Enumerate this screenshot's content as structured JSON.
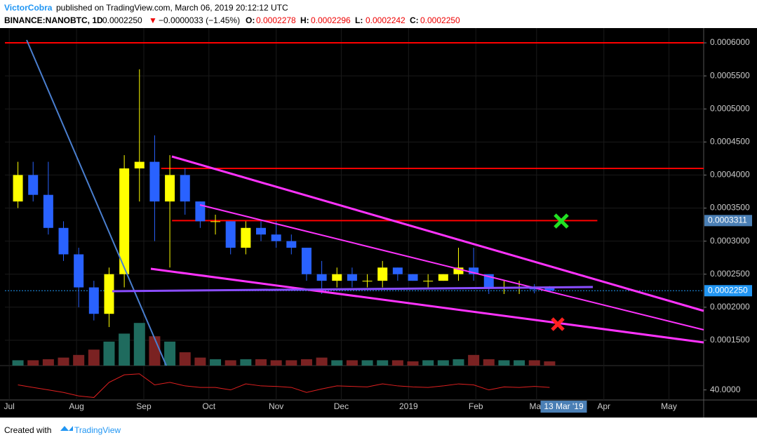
{
  "header": {
    "author": "VictorCobra",
    "published": "published on TradingView.com, March 06, 2019 20:12:12 UTC",
    "symbol": "BINANCE:NANOBTC, 1D",
    "price": "0.0002250",
    "change_arrow": "▼",
    "change": "−0.0000033 (−1.45%)",
    "ohlc": [
      {
        "key": "O:",
        "value": "0.0002278"
      },
      {
        "key": "H:",
        "value": "0.0002296"
      },
      {
        "key": "L:",
        "value": "0.0002242"
      },
      {
        "key": "C:",
        "value": "0.0002250"
      }
    ]
  },
  "chart_data": {
    "type": "candlestick",
    "x": [
      1,
      8,
      15,
      22,
      29,
      36,
      43,
      50,
      57,
      64,
      71,
      78,
      85,
      92,
      99,
      106,
      113,
      120,
      127,
      134,
      141,
      148,
      155,
      162,
      169,
      176,
      183,
      190,
      197,
      204,
      211,
      218,
      225,
      232,
      239,
      246
    ],
    "open": [
      0.00036,
      0.0004,
      0.00037,
      0.00032,
      0.00028,
      0.00023,
      0.00019,
      0.00025,
      0.00041,
      0.00042,
      0.00036,
      0.0004,
      0.00036,
      0.00033,
      0.00033,
      0.00029,
      0.00032,
      0.00031,
      0.0003,
      0.00029,
      0.00025,
      0.00024,
      0.00025,
      0.00024,
      0.00024,
      0.00026,
      0.00025,
      0.00024,
      0.00024,
      0.00025,
      0.00026,
      0.00025,
      0.00023,
      0.00023,
      0.00023,
      0.00023
    ],
    "high": [
      0.00042,
      0.00042,
      0.00042,
      0.00033,
      0.00029,
      0.00024,
      0.00026,
      0.00043,
      0.00056,
      0.00046,
      0.00043,
      0.00041,
      0.00036,
      0.00034,
      0.00033,
      0.00033,
      0.00033,
      0.00033,
      0.00031,
      0.00029,
      0.00027,
      0.00026,
      0.00026,
      0.00025,
      0.00027,
      0.00026,
      0.00025,
      0.00025,
      0.00025,
      0.00029,
      0.00029,
      0.00025,
      0.00024,
      0.00024,
      0.000235,
      0.000232
    ],
    "low": [
      0.00035,
      0.00036,
      0.00031,
      0.00027,
      0.0002,
      0.00018,
      0.00017,
      0.00023,
      0.00036,
      0.0003,
      0.00026,
      0.00034,
      0.00032,
      0.00031,
      0.00028,
      0.00028,
      0.0003,
      0.00029,
      0.00028,
      0.00024,
      0.00022,
      0.00023,
      0.00023,
      0.00023,
      0.00023,
      0.00024,
      0.00024,
      0.00023,
      0.00024,
      0.00024,
      0.00024,
      0.00022,
      0.00022,
      0.00022,
      0.000221,
      0.000224
    ],
    "close": [
      0.0004,
      0.00037,
      0.00032,
      0.00028,
      0.00023,
      0.00019,
      0.00025,
      0.00041,
      0.00042,
      0.00036,
      0.0004,
      0.00036,
      0.00033,
      0.00033,
      0.00029,
      0.00032,
      0.00031,
      0.0003,
      0.00029,
      0.00025,
      0.00024,
      0.00025,
      0.00024,
      0.00024,
      0.00026,
      0.00025,
      0.00024,
      0.00024,
      0.00025,
      0.00026,
      0.00025,
      0.00023,
      0.00023,
      0.00023,
      0.000227,
      0.000225
    ],
    "up_color": "#ffff00",
    "down_color": "#2962ff",
    "xlim": [
      -2,
      320
    ],
    "xticks": [
      {
        "value": 0,
        "label": "Jul"
      },
      {
        "value": 31,
        "label": "Aug"
      },
      {
        "value": 62,
        "label": "Sep"
      },
      {
        "value": 92,
        "label": "Oct"
      },
      {
        "value": 123,
        "label": "Nov"
      },
      {
        "value": 153,
        "label": "Dec"
      },
      {
        "value": 184,
        "label": "2019"
      },
      {
        "value": 215,
        "label": "Feb"
      },
      {
        "value": 243,
        "label": "Mar"
      },
      {
        "value": 274,
        "label": "Apr"
      },
      {
        "value": 304,
        "label": "May"
      }
    ],
    "ylim": [
      0.000112,
      0.00062
    ],
    "yticks": [
      {
        "value": 0.00015,
        "label": "0.0001500"
      },
      {
        "value": 0.0002,
        "label": "0.0002000"
      },
      {
        "value": 0.00025,
        "label": "0.0002500"
      },
      {
        "value": 0.0003,
        "label": "0.0003000"
      },
      {
        "value": 0.00035,
        "label": "0.0003500"
      },
      {
        "value": 0.0004,
        "label": "0.0004000"
      },
      {
        "value": 0.00045,
        "label": "0.0004500"
      },
      {
        "value": 0.0005,
        "label": "0.0005000"
      },
      {
        "value": 0.00055,
        "label": "0.0005500"
      },
      {
        "value": 0.0006,
        "label": "0.0006000"
      }
    ],
    "levels": [
      {
        "value": 0.0006,
        "from": -2,
        "to": 320,
        "color": "#ff0000"
      },
      {
        "value": 0.00041,
        "from": 70,
        "to": 320,
        "color": "#ff0000"
      },
      {
        "value": 0.0003311,
        "from": 75,
        "to": 271,
        "color": "#ff0000"
      }
    ],
    "price_tags": [
      {
        "value": 0.0003311,
        "label": "0.0003311",
        "color": "#4a7fb5"
      },
      {
        "value": 0.000225,
        "label": "0.0002250",
        "color": "#2196f3"
      }
    ],
    "volume": [
      10,
      10,
      12,
      15,
      20,
      30,
      45,
      60,
      80,
      55,
      45,
      25,
      15,
      12,
      10,
      12,
      12,
      10,
      10,
      12,
      15,
      10,
      10,
      10,
      10,
      10,
      8,
      10,
      10,
      12,
      20,
      12,
      10,
      10,
      10,
      8
    ],
    "volume_ylim": [
      0,
      100
    ],
    "rsi": [
      50,
      45,
      40,
      35,
      28,
      25,
      55,
      70,
      72,
      50,
      55,
      48,
      45,
      45,
      40,
      52,
      48,
      47,
      45,
      35,
      42,
      48,
      47,
      46,
      52,
      48,
      46,
      45,
      48,
      52,
      50,
      40,
      46,
      45,
      47,
      45
    ],
    "rsi_ylim": [
      20,
      80
    ],
    "rsi_ticks": [
      {
        "value": 40,
        "label": "40.0000"
      }
    ],
    "crosshair": {
      "value": 255.5,
      "label": "13 Mar '19"
    }
  },
  "footer": {
    "created": "Created with",
    "brand": "TradingView"
  }
}
